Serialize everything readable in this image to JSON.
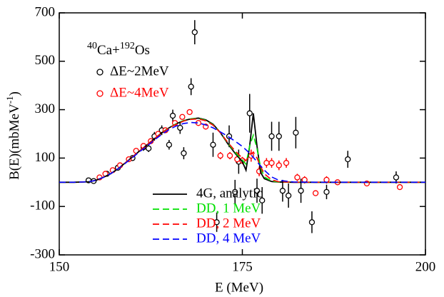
{
  "chart_data": {
    "type": "scatter",
    "system_label": [
      "40",
      "Ca+",
      "192",
      "Os"
    ],
    "x_label": "E (MeV)",
    "y_label": [
      "B(E)(mbMeV",
      "-1",
      ")"
    ],
    "xlim": [
      150,
      200
    ],
    "xticks": [
      150,
      175,
      200
    ],
    "ylim": [
      -300,
      700
    ],
    "yticks": [
      -300,
      -100,
      100,
      300,
      500,
      700
    ],
    "series": [
      {
        "name": "ΔE~2MeV",
        "kind": "points",
        "color": "#000000",
        "x": [
          154,
          154.7,
          156.5,
          158,
          160,
          161.5,
          162.2,
          163,
          164,
          165,
          165.5,
          166.5,
          167,
          168,
          168.5,
          171,
          171.5,
          173.2,
          174,
          174.5,
          176,
          177,
          177.7,
          179,
          180,
          180.5,
          181.3,
          182.3,
          183,
          184.5,
          186.5,
          189.4,
          196
        ],
        "values": [
          8,
          5,
          35,
          60,
          100,
          145,
          140,
          190,
          215,
          155,
          275,
          225,
          120,
          395,
          620,
          155,
          -165,
          190,
          -40,
          85,
          285,
          -35,
          -75,
          190,
          190,
          -35,
          -55,
          205,
          -35,
          -165,
          -40,
          95,
          20
        ],
        "errors": [
          5,
          5,
          8,
          10,
          12,
          15,
          15,
          18,
          20,
          20,
          25,
          25,
          25,
          35,
          50,
          50,
          40,
          45,
          50,
          50,
          80,
          50,
          55,
          60,
          60,
          45,
          50,
          65,
          50,
          45,
          30,
          35,
          25
        ]
      },
      {
        "name": "ΔE~4MeV",
        "kind": "points",
        "color": "#ff0000",
        "x": [
          155.5,
          156.3,
          157.3,
          158.3,
          159.5,
          160.5,
          161.5,
          162.5,
          163.5,
          164.5,
          165.8,
          166.8,
          167.8,
          169,
          170,
          172,
          173.3,
          174.3,
          175,
          176.2,
          177.3,
          178.3,
          179,
          180,
          181,
          182.5,
          183.5,
          185,
          186.5,
          188,
          192,
          196.5
        ],
        "values": [
          20,
          35,
          50,
          70,
          95,
          130,
          150,
          170,
          200,
          215,
          245,
          270,
          290,
          245,
          230,
          110,
          110,
          95,
          90,
          110,
          45,
          80,
          80,
          70,
          80,
          20,
          10,
          -45,
          10,
          0,
          -5,
          -20
        ],
        "errors": [
          4,
          5,
          5,
          6,
          7,
          8,
          8,
          9,
          10,
          10,
          10,
          10,
          12,
          12,
          12,
          15,
          15,
          15,
          15,
          25,
          20,
          20,
          20,
          20,
          20,
          15,
          15,
          10,
          15,
          10,
          8,
          10
        ]
      },
      {
        "name": "4G, analytic",
        "kind": "line",
        "color": "#000000",
        "dash": false,
        "x": [
          150,
          152,
          154,
          155,
          156,
          157,
          158,
          159,
          160,
          161,
          162,
          163,
          164,
          165,
          166,
          167,
          168,
          169,
          170,
          171,
          172,
          173,
          174,
          175,
          175.5,
          176,
          176.5,
          177,
          177.5,
          178,
          179,
          180,
          182,
          185,
          190,
          200
        ],
        "values": [
          0,
          0,
          2,
          8,
          20,
          35,
          55,
          80,
          105,
          130,
          155,
          180,
          205,
          225,
          242,
          255,
          262,
          265,
          258,
          240,
          205,
          160,
          120,
          85,
          50,
          150,
          285,
          150,
          40,
          15,
          3,
          1,
          0,
          0,
          0,
          0
        ]
      },
      {
        "name": "DD, 1 MeV",
        "kind": "line",
        "color": "#00e000",
        "dash": true,
        "x": [
          150,
          152,
          154,
          155,
          156,
          157,
          158,
          159,
          160,
          161,
          162,
          163,
          164,
          165,
          166,
          167,
          168,
          169,
          170,
          171,
          172,
          173,
          174,
          175,
          175.5,
          176,
          176.5,
          177,
          177.5,
          178,
          179,
          180,
          182,
          185,
          190,
          200
        ],
        "values": [
          0,
          0,
          2,
          8,
          20,
          35,
          55,
          80,
          105,
          130,
          155,
          180,
          205,
          225,
          242,
          255,
          262,
          264,
          256,
          238,
          205,
          162,
          124,
          92,
          75,
          150,
          195,
          140,
          60,
          22,
          5,
          1,
          0,
          0,
          0,
          0
        ]
      },
      {
        "name": "DD, 2 MeV",
        "kind": "line",
        "color": "#ff0000",
        "dash": true,
        "x": [
          150,
          152,
          154,
          155,
          156,
          157,
          158,
          159,
          160,
          161,
          162,
          163,
          164,
          165,
          166,
          167,
          168,
          169,
          170,
          171,
          172,
          173,
          174,
          175,
          175.5,
          176,
          176.5,
          177,
          177.5,
          178,
          179,
          180,
          182,
          185,
          190,
          200
        ],
        "values": [
          0,
          0,
          2,
          8,
          20,
          35,
          55,
          80,
          105,
          130,
          155,
          180,
          204,
          224,
          240,
          253,
          260,
          262,
          254,
          236,
          205,
          165,
          130,
          100,
          90,
          110,
          125,
          100,
          65,
          35,
          10,
          2,
          0,
          0,
          0,
          0
        ]
      },
      {
        "name": "DD, 4 MeV",
        "kind": "line",
        "color": "#0000ff",
        "dash": true,
        "x": [
          150,
          152,
          154,
          155,
          156,
          157,
          158,
          159,
          160,
          161,
          162,
          163,
          164,
          165,
          166,
          167,
          168,
          169,
          170,
          171,
          172,
          173,
          174,
          175,
          176,
          177,
          178,
          179,
          180,
          182,
          185,
          190,
          200
        ],
        "values": [
          0,
          0,
          2,
          8,
          20,
          35,
          55,
          78,
          102,
          127,
          150,
          175,
          198,
          218,
          233,
          243,
          247,
          245,
          237,
          225,
          208,
          190,
          170,
          148,
          120,
          85,
          50,
          22,
          8,
          1,
          0,
          0,
          0
        ]
      }
    ]
  }
}
